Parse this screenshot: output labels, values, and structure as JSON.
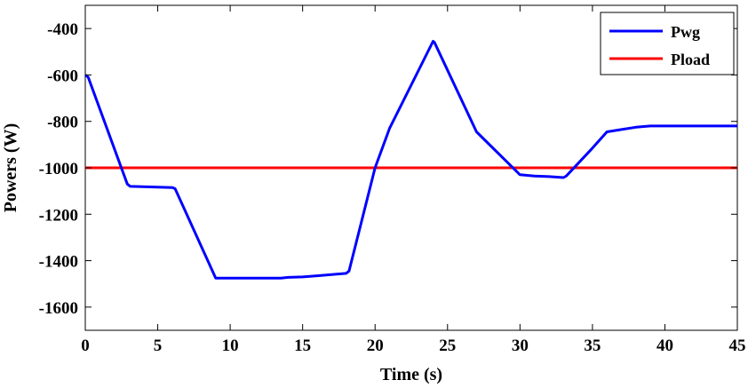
{
  "chart_data": {
    "type": "line",
    "xlabel": "Time (s)",
    "ylabel": "Powers (W)",
    "xlim": [
      0,
      45
    ],
    "ylim": [
      -1700,
      -300
    ],
    "xticks": [
      0,
      5,
      10,
      15,
      20,
      25,
      30,
      35,
      40,
      45
    ],
    "yticks": [
      -1600,
      -1400,
      -1200,
      -1000,
      -800,
      -600,
      -400
    ],
    "grid": false,
    "legend_position": "top-right",
    "series": [
      {
        "name": "Pwg",
        "color": "#0000ff",
        "x": [
          0,
          0.2,
          2.9,
          3.1,
          6,
          6.2,
          9,
          13.5,
          14,
          15,
          16,
          17,
          18,
          18.2,
          20,
          21,
          24,
          24.1,
          27,
          30,
          31,
          32,
          33,
          33.2,
          35,
          36,
          37,
          38,
          39,
          45
        ],
        "y": [
          -600,
          -610,
          -1070,
          -1080,
          -1085,
          -1090,
          -1475,
          -1475,
          -1472,
          -1470,
          -1465,
          -1460,
          -1455,
          -1445,
          -1000,
          -830,
          -455,
          -460,
          -845,
          -1030,
          -1035,
          -1038,
          -1042,
          -1035,
          -915,
          -845,
          -835,
          -825,
          -820,
          -820
        ]
      },
      {
        "name": "Pload",
        "color": "#ff0000",
        "x": [
          0,
          45
        ],
        "y": [
          -1000,
          -1000
        ]
      }
    ]
  }
}
